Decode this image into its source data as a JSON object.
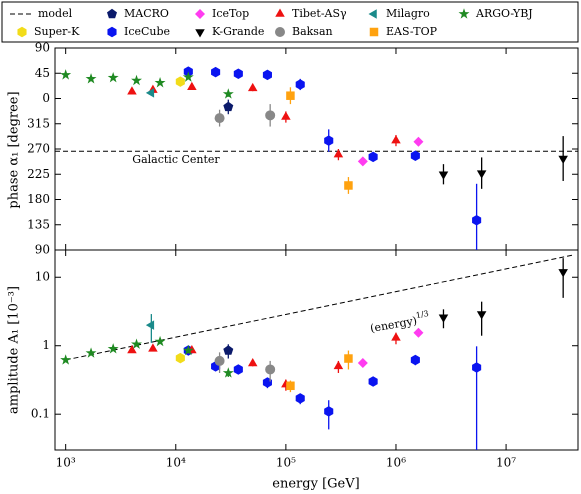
{
  "chart_data": {
    "type": "scatter",
    "xlabel": "energy [GeV]",
    "xscale": "log",
    "xlim": [
      800,
      45000000
    ],
    "xticks": [
      {
        "value": 1000,
        "label": "10³"
      },
      {
        "value": 10000,
        "label": "10⁴"
      },
      {
        "value": 100000,
        "label": "10⁵"
      },
      {
        "value": 1000000,
        "label": "10⁶"
      },
      {
        "value": 10000000,
        "label": "10⁷"
      }
    ],
    "phase_axis": {
      "label": "phase α₁ [degree]",
      "ylim": [
        -270,
        90
      ],
      "yticks": [
        {
          "value": -270,
          "label": "90"
        },
        {
          "value": -225,
          "label": "135"
        },
        {
          "value": -180,
          "label": "180"
        },
        {
          "value": -135,
          "label": "225"
        },
        {
          "value": -90,
          "label": "270"
        },
        {
          "value": -45,
          "label": "315"
        },
        0,
        45,
        90
      ]
    },
    "amplitude_axis": {
      "label": "amplitude A₁ [10⁻³]",
      "yscale": "log",
      "ylim": [
        0.03,
        25
      ],
      "yticks": [
        0.1,
        1,
        10
      ]
    },
    "galactic_center": {
      "label": "Galactic Center",
      "value": -94
    },
    "model": {
      "name": "model",
      "x": [
        1000,
        40000000
      ],
      "values": [
        0.62,
        21
      ],
      "annotation": "(energy)",
      "annotation_sup": "1/3"
    },
    "series": [
      {
        "name": "Super-K",
        "marker": "hexagon",
        "color": "#f2dc1a",
        "x": [
          11000
        ],
        "phase": [
          30
        ],
        "phase_errors": [
          5
        ],
        "amplitude": [
          0.66
        ],
        "amplitude_errors": [
          0.04
        ]
      },
      {
        "name": "MACRO",
        "marker": "pentagon",
        "color": "#0b1a6b",
        "x": [
          30000
        ],
        "phase": [
          -15
        ],
        "phase_errors": [
          13
        ],
        "amplitude": [
          0.85
        ],
        "amplitude_errors": [
          0.2
        ]
      },
      {
        "name": "IceCube",
        "marker": "hexagon",
        "color": "#0a14f0",
        "x": [
          13000,
          23000,
          37000,
          68000,
          135000,
          245000,
          620000,
          1500000,
          5400000
        ],
        "phase": [
          48,
          47,
          44,
          42,
          25,
          -75,
          -104,
          -102,
          -217
        ],
        "phase_errors": [
          5,
          3,
          3,
          4,
          10,
          20,
          6,
          8,
          65
        ],
        "amplitude": [
          0.85,
          0.5,
          0.45,
          0.29,
          0.17,
          0.11,
          0.3,
          0.62,
          0.48
        ],
        "amplitude_errors": [
          0.05,
          0.04,
          0.04,
          0.05,
          0.03,
          0.05,
          0.03,
          0.1,
          0.5
        ]
      },
      {
        "name": "IceTop",
        "marker": "diamond",
        "color": "#ff3cf0",
        "x": [
          500000,
          1600000
        ],
        "phase": [
          -112,
          -77
        ],
        "phase_errors": [
          5,
          5
        ],
        "amplitude": [
          0.56,
          1.55
        ],
        "amplitude_errors": [
          0.05,
          0.1
        ]
      },
      {
        "name": "K-Grande",
        "marker": "tri-down",
        "color": "#000000",
        "x": [
          2700000,
          6000000,
          33000000
        ],
        "phase": [
          -135,
          -133,
          -107
        ],
        "phase_errors": [
          18,
          28,
          40
        ],
        "amplitude": [
          2.6,
          2.9,
          12
        ],
        "amplitude_errors": [
          0.8,
          1.5,
          7
        ]
      },
      {
        "name": "Tibet-ASγ",
        "marker": "tri-up",
        "color": "#ee1111",
        "x": [
          4000,
          6200,
          14000,
          50000,
          100000,
          300000,
          1000000
        ],
        "phase": [
          12,
          15,
          20,
          18,
          -33,
          -100,
          -75
        ],
        "phase_errors": [
          4,
          4,
          4,
          5,
          10,
          10,
          10
        ],
        "amplitude": [
          0.85,
          0.9,
          0.85,
          0.55,
          0.27,
          0.5,
          1.3
        ],
        "amplitude_errors": [
          0.05,
          0.05,
          0.05,
          0.05,
          0.05,
          0.1,
          0.25
        ]
      },
      {
        "name": "Baksan",
        "marker": "circle",
        "color": "#888888",
        "x": [
          25000,
          72000
        ],
        "phase": [
          -35,
          -30
        ],
        "phase_errors": [
          15,
          20
        ],
        "amplitude": [
          0.6,
          0.45
        ],
        "amplitude_errors": [
          0.2,
          0.15
        ]
      },
      {
        "name": "Milagro",
        "marker": "tri-left",
        "color": "#1a8a8a",
        "x": [
          6000
        ],
        "phase": [
          10
        ],
        "phase_errors": [
          4
        ],
        "amplitude": [
          2.0
        ],
        "amplitude_errors": [
          0.9
        ]
      },
      {
        "name": "EAS-TOP",
        "marker": "square",
        "color": "#ffa20f",
        "x": [
          110000,
          370000
        ],
        "phase": [
          5,
          -155
        ],
        "phase_errors": [
          15,
          15
        ],
        "amplitude": [
          0.26,
          0.65
        ],
        "amplitude_errors": [
          0.05,
          0.2
        ]
      },
      {
        "name": "ARGO-YBJ",
        "marker": "star",
        "color": "#1f8a22",
        "x": [
          1000,
          1700,
          2700,
          4400,
          7200,
          13000,
          30000
        ],
        "phase": [
          42,
          35,
          37,
          32,
          28,
          38,
          8
        ],
        "phase_errors": [
          2,
          2,
          2,
          2,
          3,
          3,
          5
        ],
        "amplitude": [
          0.62,
          0.78,
          0.9,
          1.05,
          1.15,
          0.85,
          0.4
        ],
        "amplitude_errors": [
          0.02,
          0.02,
          0.03,
          0.03,
          0.04,
          0.05,
          0.05
        ]
      }
    ]
  }
}
